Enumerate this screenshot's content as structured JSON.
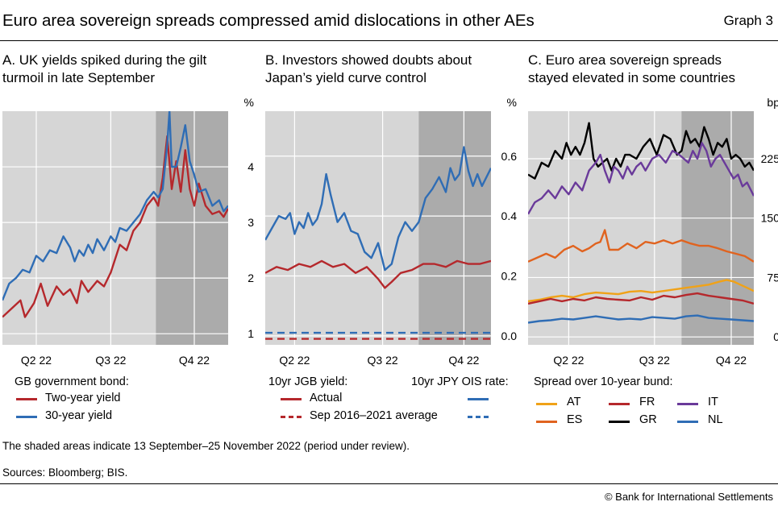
{
  "title": "Euro area sovereign spreads compressed amid dislocations in other AEs",
  "graph_label": "Graph 3",
  "note": "The shaded areas indicate 13 September–25 November 2022 (period under review).",
  "sources": "Sources: Bloomberg; BIS.",
  "copyright": "© Bank for International Settlements",
  "colors": {
    "panel_bg": "#d6d6d6",
    "shade": "#ababab",
    "grid": "#ffffff",
    "red": "#b5282c",
    "blue": "#2f6db5",
    "orange": "#f0a218",
    "dkorange": "#e0631f",
    "black": "#000000",
    "purple": "#6a3a9a"
  },
  "panels": [
    {
      "title_line1": "A. UK yields spiked during the gilt",
      "title_line2": "turmoil in late September",
      "unit": "%",
      "legend_header": "GB government bond:",
      "legend": [
        "Two-year yield",
        "30-year yield"
      ]
    },
    {
      "title_line1": "B. Investors showed doubts about",
      "title_line2": "Japan’s yield curve control",
      "unit": "%",
      "legend_header_left": "10yr JGB yield:",
      "legend_header_right": "10yr JPY OIS rate:",
      "legend": [
        "Actual",
        "Sep 2016–2021 average"
      ]
    },
    {
      "title_line1": "C. Euro area sovereign spreads",
      "title_line2": "stayed elevated in some countries",
      "unit": "bp",
      "legend_header": "Spread over 10-year bund:",
      "legend": [
        "AT",
        "FR",
        "IT",
        "ES",
        "GR",
        "NL"
      ]
    }
  ],
  "chart_data": [
    {
      "type": "line",
      "title": "A. UK yields spiked during the gilt turmoil in late September",
      "ylabel": "%",
      "x_range": [
        0,
        100
      ],
      "ylim": [
        0.8,
        5.0
      ],
      "yticks": [
        1,
        2,
        3,
        4
      ],
      "xticks": [
        {
          "x": 15,
          "label": "Q2 22"
        },
        {
          "x": 48,
          "label": "Q3 22"
        },
        {
          "x": 85,
          "label": "Q4 22"
        }
      ],
      "shaded": [
        68,
        100
      ],
      "series": [
        {
          "name": "Two-year yield",
          "color": "red",
          "x": [
            0,
            4,
            8,
            10,
            14,
            17,
            20,
            24,
            27,
            30,
            33,
            35,
            38,
            42,
            45,
            48,
            52,
            55,
            58,
            61,
            64,
            67,
            69,
            71,
            73,
            75,
            77,
            79,
            81,
            83,
            85,
            87,
            90,
            93,
            96,
            98,
            100
          ],
          "y": [
            1.3,
            1.45,
            1.6,
            1.3,
            1.55,
            1.9,
            1.5,
            1.85,
            1.7,
            1.8,
            1.55,
            1.95,
            1.75,
            1.95,
            1.85,
            2.1,
            2.6,
            2.5,
            2.85,
            3.0,
            3.3,
            3.45,
            3.3,
            3.8,
            4.55,
            3.6,
            4.1,
            3.55,
            4.3,
            3.6,
            3.3,
            3.7,
            3.3,
            3.15,
            3.2,
            3.1,
            3.25
          ]
        },
        {
          "name": "30-year yield",
          "color": "blue",
          "x": [
            0,
            3,
            6,
            9,
            12,
            15,
            18,
            21,
            24,
            27,
            30,
            32,
            34,
            36,
            38,
            40,
            42,
            45,
            48,
            50,
            52,
            55,
            58,
            61,
            64,
            67,
            69,
            71,
            73,
            74,
            75,
            77,
            79,
            81,
            83,
            85,
            87,
            90,
            93,
            96,
            98,
            100
          ],
          "y": [
            1.6,
            1.9,
            2.0,
            2.15,
            2.1,
            2.4,
            2.3,
            2.5,
            2.45,
            2.75,
            2.55,
            2.3,
            2.5,
            2.4,
            2.6,
            2.45,
            2.7,
            2.5,
            2.75,
            2.65,
            2.9,
            2.85,
            3.0,
            3.15,
            3.4,
            3.55,
            3.45,
            3.6,
            4.4,
            5.0,
            4.0,
            4.0,
            4.35,
            4.75,
            4.1,
            3.85,
            3.55,
            3.6,
            3.3,
            3.4,
            3.2,
            3.3
          ]
        }
      ]
    },
    {
      "type": "line",
      "title": "B. Investors showed doubts about Japan’s yield curve control",
      "ylabel": "%",
      "x_range": [
        0,
        100
      ],
      "ylim": [
        -0.03,
        0.75
      ],
      "yticks": [
        0.0,
        0.2,
        0.4,
        0.6
      ],
      "ytick_labels": [
        "0.0",
        "0.2",
        "0.4",
        "0.6"
      ],
      "xticks": [
        {
          "x": 13,
          "label": "Q2 22"
        },
        {
          "x": 52,
          "label": "Q3 22"
        },
        {
          "x": 88,
          "label": "Q4 22"
        }
      ],
      "shaded": [
        68,
        100
      ],
      "series": [
        {
          "name": "10yr JPY OIS rate",
          "color": "blue",
          "x": [
            0,
            3,
            6,
            9,
            11,
            13,
            15,
            17,
            19,
            21,
            23,
            25,
            27,
            29,
            32,
            35,
            38,
            41,
            44,
            47,
            50,
            53,
            56,
            59,
            62,
            65,
            68,
            71,
            74,
            77,
            80,
            82,
            84,
            86,
            88,
            90,
            92,
            94,
            96,
            98,
            100
          ],
          "y": [
            0.32,
            0.36,
            0.4,
            0.39,
            0.41,
            0.34,
            0.38,
            0.36,
            0.41,
            0.37,
            0.39,
            0.44,
            0.54,
            0.47,
            0.38,
            0.41,
            0.35,
            0.34,
            0.28,
            0.26,
            0.31,
            0.22,
            0.24,
            0.33,
            0.38,
            0.35,
            0.38,
            0.46,
            0.49,
            0.53,
            0.48,
            0.56,
            0.52,
            0.54,
            0.63,
            0.55,
            0.5,
            0.54,
            0.5,
            0.53,
            0.56
          ]
        },
        {
          "name": "10yr JGB yield — Actual",
          "color": "red",
          "x": [
            0,
            5,
            10,
            15,
            20,
            25,
            30,
            35,
            40,
            45,
            50,
            53,
            56,
            60,
            65,
            70,
            75,
            80,
            85,
            90,
            95,
            100
          ],
          "y": [
            0.21,
            0.23,
            0.22,
            0.24,
            0.23,
            0.25,
            0.23,
            0.24,
            0.21,
            0.23,
            0.19,
            0.16,
            0.18,
            0.21,
            0.22,
            0.24,
            0.24,
            0.23,
            0.25,
            0.24,
            0.24,
            0.25
          ]
        },
        {
          "name": "JPY OIS Sep 2016–2021 average",
          "color": "blue",
          "dashed": true,
          "x": [
            0,
            100
          ],
          "y": [
            0.01,
            0.01
          ]
        },
        {
          "name": "JGB Sep 2016–2021 average",
          "color": "red",
          "dashed": true,
          "x": [
            0,
            100
          ],
          "y": [
            -0.01,
            -0.01
          ]
        }
      ]
    },
    {
      "type": "line",
      "title": "C. Euro area sovereign spreads stayed elevated in some countries",
      "ylabel": "bp",
      "x_range": [
        0,
        100
      ],
      "ylim": [
        -10,
        285
      ],
      "yticks": [
        0,
        75,
        150,
        225
      ],
      "xticks": [
        {
          "x": 18,
          "label": "Q2 22"
        },
        {
          "x": 56,
          "label": "Q3 22"
        },
        {
          "x": 90,
          "label": "Q4 22"
        }
      ],
      "shaded": [
        68,
        100
      ],
      "series": [
        {
          "name": "GR",
          "color": "black",
          "x": [
            0,
            3,
            6,
            9,
            12,
            15,
            17,
            19,
            21,
            23,
            25,
            27,
            29,
            31,
            33,
            35,
            37,
            39,
            41,
            43,
            45,
            48,
            51,
            54,
            57,
            60,
            63,
            66,
            68,
            70,
            72,
            74,
            76,
            78,
            80,
            82,
            84,
            86,
            88,
            90,
            92,
            94,
            96,
            98,
            100
          ],
          "y": [
            205,
            200,
            220,
            215,
            235,
            225,
            245,
            230,
            240,
            230,
            245,
            270,
            225,
            215,
            220,
            225,
            210,
            225,
            215,
            230,
            230,
            225,
            240,
            250,
            230,
            255,
            250,
            230,
            235,
            260,
            245,
            250,
            240,
            265,
            250,
            230,
            245,
            240,
            250,
            225,
            230,
            225,
            215,
            220,
            210
          ]
        },
        {
          "name": "IT",
          "color": "purple",
          "x": [
            0,
            3,
            6,
            9,
            12,
            15,
            18,
            21,
            24,
            27,
            30,
            32,
            34,
            36,
            38,
            40,
            42,
            44,
            46,
            48,
            50,
            52,
            55,
            58,
            61,
            64,
            67,
            69,
            71,
            73,
            75,
            77,
            79,
            81,
            83,
            85,
            87,
            89,
            91,
            93,
            95,
            97,
            100
          ],
          "y": [
            155,
            170,
            175,
            185,
            175,
            190,
            180,
            195,
            185,
            210,
            220,
            230,
            210,
            195,
            215,
            210,
            200,
            215,
            205,
            215,
            220,
            210,
            225,
            230,
            220,
            235,
            230,
            225,
            220,
            235,
            225,
            245,
            235,
            215,
            225,
            230,
            220,
            210,
            200,
            205,
            190,
            195,
            178
          ]
        },
        {
          "name": "ES",
          "color": "dkorange",
          "x": [
            0,
            4,
            8,
            12,
            16,
            20,
            24,
            27,
            30,
            32,
            34,
            36,
            40,
            44,
            48,
            52,
            56,
            60,
            64,
            68,
            72,
            76,
            80,
            84,
            88,
            92,
            96,
            100
          ],
          "y": [
            95,
            100,
            105,
            100,
            110,
            115,
            108,
            112,
            118,
            120,
            135,
            110,
            110,
            118,
            112,
            120,
            118,
            122,
            118,
            122,
            118,
            115,
            115,
            112,
            108,
            105,
            102,
            95
          ]
        },
        {
          "name": "AT",
          "color": "orange",
          "x": [
            0,
            5,
            10,
            15,
            20,
            25,
            30,
            35,
            40,
            45,
            50,
            55,
            60,
            65,
            70,
            75,
            80,
            85,
            88,
            91,
            94,
            97,
            100
          ],
          "y": [
            45,
            47,
            50,
            52,
            50,
            54,
            56,
            55,
            54,
            57,
            58,
            56,
            58,
            60,
            62,
            64,
            66,
            70,
            72,
            70,
            66,
            62,
            58
          ]
        },
        {
          "name": "FR",
          "color": "red",
          "x": [
            0,
            5,
            10,
            15,
            20,
            25,
            30,
            35,
            40,
            45,
            50,
            55,
            60,
            65,
            70,
            75,
            80,
            85,
            90,
            95,
            100
          ],
          "y": [
            42,
            45,
            48,
            45,
            48,
            46,
            50,
            48,
            47,
            46,
            50,
            47,
            52,
            50,
            53,
            55,
            52,
            50,
            48,
            46,
            42
          ]
        },
        {
          "name": "NL",
          "color": "blue",
          "x": [
            0,
            5,
            10,
            15,
            20,
            25,
            30,
            35,
            40,
            45,
            50,
            55,
            60,
            65,
            70,
            75,
            80,
            85,
            90,
            95,
            100
          ],
          "y": [
            18,
            20,
            21,
            23,
            22,
            24,
            26,
            24,
            22,
            23,
            22,
            25,
            24,
            23,
            26,
            27,
            24,
            23,
            22,
            21,
            20
          ]
        }
      ]
    }
  ]
}
